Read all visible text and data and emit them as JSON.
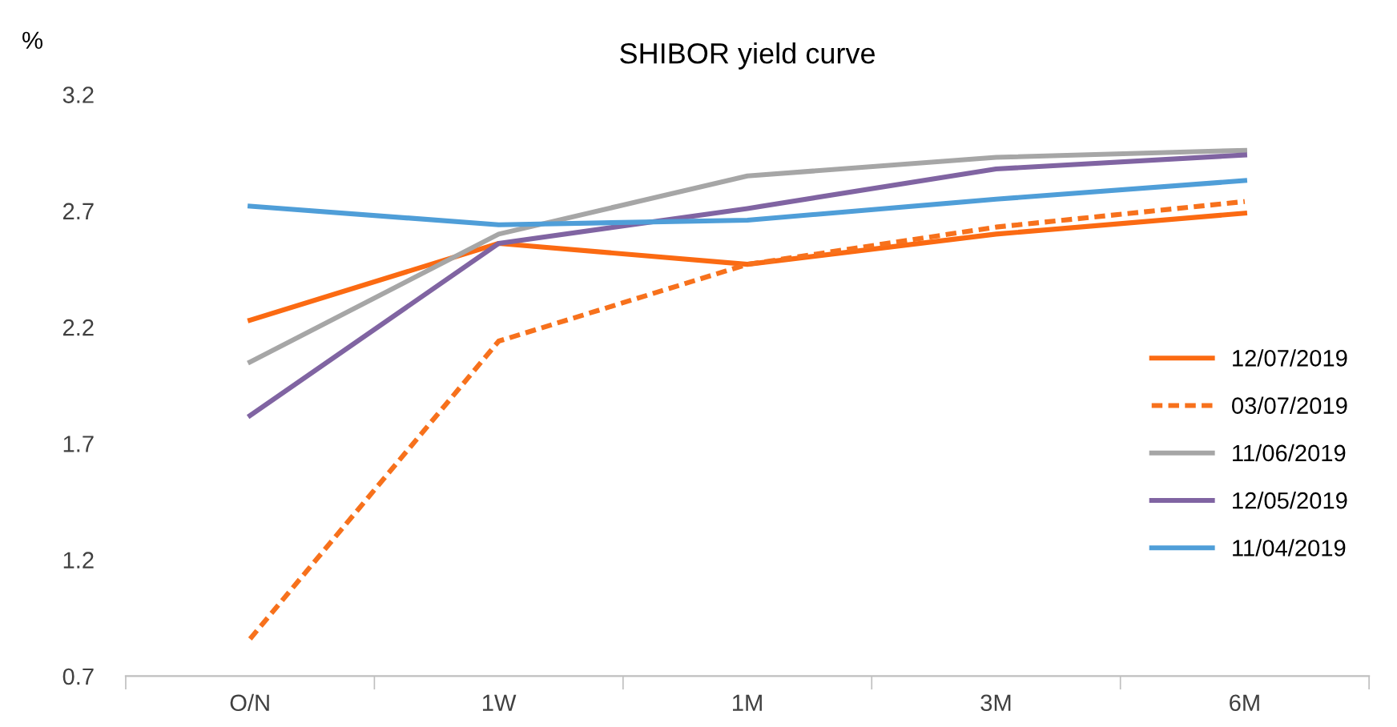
{
  "chart_data": {
    "type": "line",
    "title": "SHIBOR yield curve",
    "ylabel": "%",
    "categories": [
      "O/N",
      "1W",
      "1M",
      "3M",
      "6M"
    ],
    "series": [
      {
        "name": "12/07/2019",
        "color": "#fb6a12",
        "values": [
          2.23,
          2.56,
          2.47,
          2.6,
          2.69
        ],
        "line_style": "solid"
      },
      {
        "name": "03/07/2019",
        "color": "#f7711c",
        "values": [
          0.86,
          2.14,
          2.47,
          2.63,
          2.74
        ],
        "line_style": "dashed"
      },
      {
        "name": "11/06/2019",
        "color": "#a6a6a6",
        "values": [
          2.05,
          2.6,
          2.85,
          2.93,
          2.96
        ],
        "line_style": "solid"
      },
      {
        "name": "12/05/2019",
        "color": "#8064a2",
        "values": [
          1.82,
          2.56,
          2.71,
          2.88,
          2.94
        ],
        "line_style": "solid"
      },
      {
        "name": "11/04/2019",
        "color": "#4f9ed8",
        "values": [
          2.72,
          2.64,
          2.66,
          2.75,
          2.83
        ],
        "line_style": "solid"
      }
    ],
    "ylim": [
      0.7,
      3.2
    ],
    "yticks": [
      0.7,
      1.2,
      1.7,
      2.2,
      2.7,
      3.2
    ],
    "grid": false,
    "legend": "right",
    "marker": "none"
  }
}
